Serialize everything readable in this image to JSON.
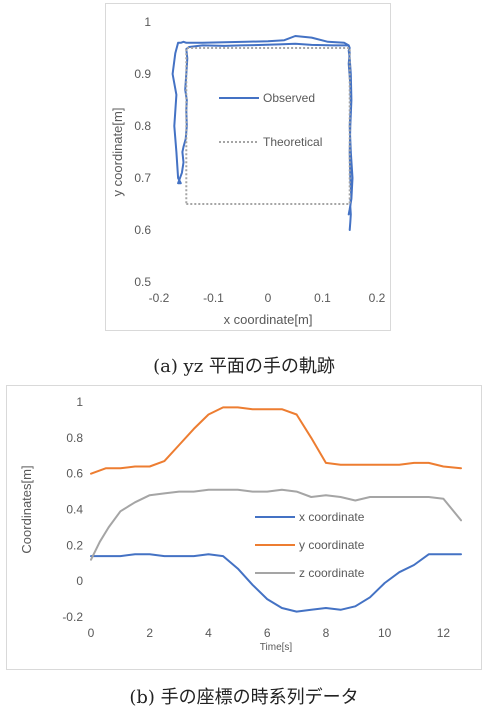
{
  "captions": {
    "a": "(a) yz 平面の手の軌跡",
    "b": "(b) 手の座標の時系列データ"
  },
  "chart_data": [
    {
      "type": "line",
      "title": "",
      "xlabel": "x coordinate[m]",
      "ylabel": "y coordinate[m]",
      "xlim": [
        -0.2,
        0.2
      ],
      "ylim": [
        0.5,
        1.0
      ],
      "xticks": [
        "-0.2",
        "-0.1",
        "0",
        "0.1",
        "0.2"
      ],
      "yticks": [
        "0.5",
        "0.6",
        "0.7",
        "0.8",
        "0.9",
        "1"
      ],
      "legend": "inside-center",
      "grid": false,
      "series": [
        {
          "name": "Observed",
          "color": "#4472c4",
          "style": "solid",
          "x": [
            0.15,
            0.151,
            0.152,
            0.151,
            0.152,
            0.151,
            0.152,
            0.153,
            0.151,
            0.15,
            0.151,
            0.153,
            0.152,
            0.15,
            0.148,
            0.15,
            0.148,
            0.12,
            0.08,
            0.05,
            0.02,
            -0.01,
            -0.05,
            -0.08,
            -0.12,
            -0.145,
            -0.15,
            -0.148,
            -0.15,
            -0.152,
            -0.149,
            -0.15,
            -0.149,
            -0.151,
            -0.155,
            -0.157,
            -0.155,
            -0.158,
            -0.165,
            -0.16,
            -0.165,
            -0.168,
            -0.172,
            -0.168,
            -0.175,
            -0.17,
            -0.165,
            -0.16,
            -0.155,
            -0.15,
            -0.12,
            -0.08,
            -0.04,
            0.0,
            0.03,
            0.05,
            0.08,
            0.11,
            0.14,
            0.148,
            0.15,
            0.148,
            0.151,
            0.152,
            0.15,
            0.152,
            0.155,
            0.153,
            0.15,
            0.148
          ],
          "y": [
            0.6,
            0.615,
            0.63,
            0.645,
            0.655,
            0.66,
            0.66,
            0.66,
            0.7,
            0.75,
            0.8,
            0.85,
            0.9,
            0.93,
            0.945,
            0.95,
            0.955,
            0.955,
            0.956,
            0.958,
            0.957,
            0.956,
            0.955,
            0.954,
            0.955,
            0.952,
            0.948,
            0.93,
            0.9,
            0.87,
            0.85,
            0.83,
            0.8,
            0.775,
            0.76,
            0.75,
            0.73,
            0.71,
            0.69,
            0.69,
            0.7,
            0.75,
            0.8,
            0.86,
            0.9,
            0.94,
            0.96,
            0.96,
            0.962,
            0.96,
            0.96,
            0.961,
            0.962,
            0.963,
            0.965,
            0.973,
            0.97,
            0.962,
            0.96,
            0.955,
            0.94,
            0.92,
            0.88,
            0.84,
            0.8,
            0.75,
            0.7,
            0.66,
            0.64,
            0.63
          ]
        },
        {
          "name": "Theoretical",
          "color": "#a5a5a5",
          "style": "dotted",
          "x": [
            -0.15,
            0.15,
            0.15,
            -0.15,
            -0.15
          ],
          "y": [
            0.65,
            0.65,
            0.95,
            0.95,
            0.65
          ]
        }
      ]
    },
    {
      "type": "line",
      "title": "",
      "xlabel": "Time[s]",
      "ylabel": "Coordinates[m]",
      "xlim": [
        0,
        12.6
      ],
      "ylim": [
        -0.2,
        1.0
      ],
      "xticks": [
        "0",
        "2",
        "4",
        "6",
        "8",
        "10",
        "12"
      ],
      "yticks": [
        "-0.2",
        "0",
        "0.2",
        "0.4",
        "0.6",
        "0.8",
        "1"
      ],
      "legend": "right",
      "grid": false,
      "series": [
        {
          "name": "x coordinate",
          "color": "#4472c4",
          "x": [
            0,
            0.5,
            1,
            1.5,
            2,
            2.5,
            3,
            3.5,
            4,
            4.5,
            5,
            5.5,
            6,
            6.5,
            7,
            7.5,
            8,
            8.5,
            9,
            9.5,
            10,
            10.5,
            11,
            11.5,
            12,
            12.6
          ],
          "y": [
            0.14,
            0.14,
            0.14,
            0.15,
            0.15,
            0.14,
            0.14,
            0.14,
            0.15,
            0.14,
            0.07,
            -0.02,
            -0.1,
            -0.15,
            -0.17,
            -0.16,
            -0.15,
            -0.16,
            -0.14,
            -0.09,
            -0.01,
            0.05,
            0.09,
            0.15,
            0.15,
            0.15
          ]
        },
        {
          "name": "y coordinate",
          "color": "#ed7d31",
          "x": [
            0,
            0.5,
            1,
            1.5,
            2,
            2.5,
            3,
            3.5,
            4,
            4.5,
            5,
            5.5,
            6,
            6.5,
            7,
            7.5,
            8,
            8.5,
            9,
            9.5,
            10,
            10.5,
            11,
            11.5,
            12,
            12.6
          ],
          "y": [
            0.6,
            0.63,
            0.63,
            0.64,
            0.64,
            0.67,
            0.76,
            0.85,
            0.93,
            0.97,
            0.97,
            0.96,
            0.96,
            0.96,
            0.93,
            0.8,
            0.66,
            0.65,
            0.65,
            0.65,
            0.65,
            0.65,
            0.66,
            0.66,
            0.64,
            0.63
          ]
        },
        {
          "name": "z coordinate",
          "color": "#a5a5a5",
          "x": [
            0,
            0.3,
            0.6,
            1,
            1.5,
            2,
            2.5,
            3,
            3.5,
            4,
            4.5,
            5,
            5.5,
            6,
            6.5,
            7,
            7.5,
            8,
            8.5,
            9,
            9.5,
            10,
            10.5,
            11,
            11.5,
            12,
            12.6
          ],
          "y": [
            0.12,
            0.22,
            0.3,
            0.39,
            0.44,
            0.48,
            0.49,
            0.5,
            0.5,
            0.51,
            0.51,
            0.51,
            0.5,
            0.5,
            0.51,
            0.5,
            0.47,
            0.48,
            0.47,
            0.45,
            0.47,
            0.47,
            0.47,
            0.47,
            0.47,
            0.46,
            0.34
          ]
        }
      ]
    }
  ]
}
